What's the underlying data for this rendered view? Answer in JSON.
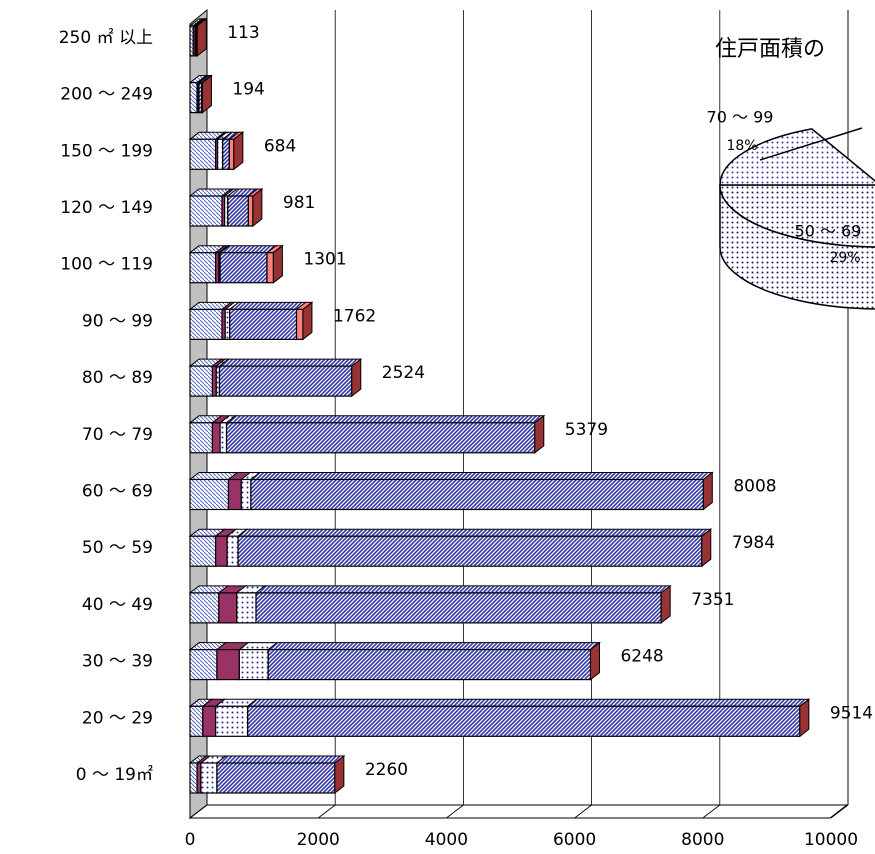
{
  "chart_data": [
    {
      "type": "bar",
      "orientation": "horizontal",
      "categories": [
        "0 ～ 19㎡",
        "20 ～ 29",
        "30 ～ 39",
        "40 ～ 49",
        "50 ～ 59",
        "60 ～ 69",
        "70 ～ 79",
        "80 ～ 89",
        "90 ～ 99",
        "100 ～ 119",
        "120 ～ 149",
        "150 ～ 199",
        "200 ～ 249",
        "250 ㎡ 以上"
      ],
      "series": [
        {
          "color": "#5a6ac0",
          "pattern": "hatch-light",
          "values": [
            110,
            200,
            420,
            450,
            400,
            600,
            350,
            350,
            500,
            400,
            500,
            400,
            110,
            50
          ]
        },
        {
          "color": "#993366",
          "pattern": "solid",
          "values": [
            60,
            200,
            350,
            280,
            180,
            200,
            120,
            60,
            50,
            50,
            40,
            30,
            20,
            30
          ]
        },
        {
          "color": "#2a2a90",
          "pattern": "dots",
          "values": [
            250,
            500,
            450,
            300,
            170,
            150,
            100,
            50,
            70,
            20,
            50,
            80,
            10,
            10
          ]
        },
        {
          "color": "#3338a8",
          "pattern": "hatch-dense",
          "values": [
            1840,
            8614,
            5028,
            6321,
            7234,
            7058,
            4809,
            2064,
            1042,
            731,
            321,
            104,
            44,
            13
          ]
        },
        {
          "color": "#ff8080",
          "pattern": "solid",
          "values": [
            0,
            0,
            0,
            0,
            0,
            0,
            0,
            0,
            100,
            100,
            70,
            70,
            10,
            10
          ]
        }
      ],
      "totals": [
        2260,
        9514,
        6248,
        7351,
        7984,
        8008,
        5379,
        2524,
        1762,
        1301,
        981,
        684,
        194,
        113
      ],
      "xlim": [
        0,
        10000
      ],
      "xticks": [
        0,
        2000,
        4000,
        6000,
        8000,
        10000
      ],
      "grid": true
    },
    {
      "type": "pie",
      "title": "住戸面積の",
      "labels": [
        "70 ～ 99",
        "50 ～ 69"
      ],
      "values": [
        18,
        29
      ],
      "value_labels": [
        "18%",
        "29%"
      ],
      "colors": [
        "#3a3ab0",
        "#1a1a70"
      ]
    }
  ]
}
